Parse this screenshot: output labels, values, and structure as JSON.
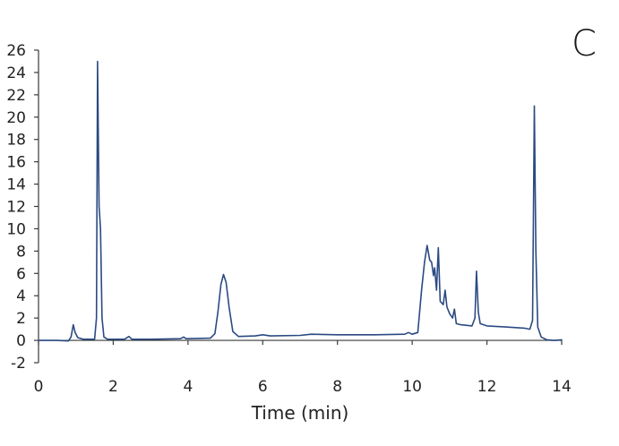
{
  "chart_data": {
    "type": "line",
    "title": "",
    "panel_label": "C",
    "xlabel": "Time (min)",
    "ylabel": "",
    "xlim": [
      0,
      14
    ],
    "ylim": [
      -2,
      26
    ],
    "x_ticks": [
      0,
      2,
      4,
      6,
      8,
      10,
      12,
      14
    ],
    "y_ticks": [
      -2,
      0,
      2,
      4,
      6,
      8,
      10,
      12,
      14,
      16,
      18,
      20,
      22,
      24,
      26
    ],
    "grid": false,
    "legend": "none",
    "line_color": "#2b4a82",
    "series": [
      {
        "values": [
          [
            0.0,
            0.0
          ],
          [
            0.5,
            0.0
          ],
          [
            0.8,
            -0.05
          ],
          [
            0.87,
            0.3
          ],
          [
            0.93,
            1.4
          ],
          [
            0.98,
            0.7
          ],
          [
            1.05,
            0.25
          ],
          [
            1.2,
            0.1
          ],
          [
            1.5,
            0.1
          ],
          [
            1.55,
            2.0
          ],
          [
            1.58,
            25.0
          ],
          [
            1.62,
            12.0
          ],
          [
            1.66,
            10.0
          ],
          [
            1.7,
            2.0
          ],
          [
            1.75,
            0.3
          ],
          [
            1.85,
            0.1
          ],
          [
            2.3,
            0.1
          ],
          [
            2.42,
            0.35
          ],
          [
            2.5,
            0.1
          ],
          [
            3.0,
            0.1
          ],
          [
            3.8,
            0.15
          ],
          [
            3.88,
            0.3
          ],
          [
            3.95,
            0.15
          ],
          [
            4.6,
            0.2
          ],
          [
            4.72,
            0.6
          ],
          [
            4.8,
            2.5
          ],
          [
            4.88,
            5.0
          ],
          [
            4.95,
            5.9
          ],
          [
            5.02,
            5.2
          ],
          [
            5.1,
            3.0
          ],
          [
            5.2,
            0.8
          ],
          [
            5.35,
            0.35
          ],
          [
            5.8,
            0.4
          ],
          [
            6.0,
            0.5
          ],
          [
            6.2,
            0.4
          ],
          [
            7.0,
            0.45
          ],
          [
            7.3,
            0.55
          ],
          [
            8.0,
            0.5
          ],
          [
            9.0,
            0.5
          ],
          [
            9.8,
            0.55
          ],
          [
            9.9,
            0.7
          ],
          [
            10.0,
            0.55
          ],
          [
            10.15,
            0.7
          ],
          [
            10.25,
            4.5
          ],
          [
            10.33,
            7.0
          ],
          [
            10.4,
            8.5
          ],
          [
            10.47,
            7.2
          ],
          [
            10.52,
            7.0
          ],
          [
            10.57,
            5.8
          ],
          [
            10.6,
            6.5
          ],
          [
            10.65,
            4.5
          ],
          [
            10.7,
            8.3
          ],
          [
            10.75,
            3.5
          ],
          [
            10.83,
            3.2
          ],
          [
            10.88,
            4.5
          ],
          [
            10.93,
            3.0
          ],
          [
            11.0,
            2.4
          ],
          [
            11.08,
            2.0
          ],
          [
            11.13,
            2.8
          ],
          [
            11.18,
            1.5
          ],
          [
            11.3,
            1.4
          ],
          [
            11.6,
            1.3
          ],
          [
            11.68,
            2.0
          ],
          [
            11.72,
            6.2
          ],
          [
            11.77,
            2.5
          ],
          [
            11.82,
            1.5
          ],
          [
            12.0,
            1.3
          ],
          [
            12.5,
            1.2
          ],
          [
            13.0,
            1.1
          ],
          [
            13.15,
            1.0
          ],
          [
            13.22,
            1.8
          ],
          [
            13.27,
            21.0
          ],
          [
            13.31,
            8.0
          ],
          [
            13.36,
            1.2
          ],
          [
            13.45,
            0.3
          ],
          [
            13.6,
            0.05
          ],
          [
            13.8,
            0.0
          ],
          [
            14.0,
            0.05
          ]
        ]
      }
    ]
  }
}
